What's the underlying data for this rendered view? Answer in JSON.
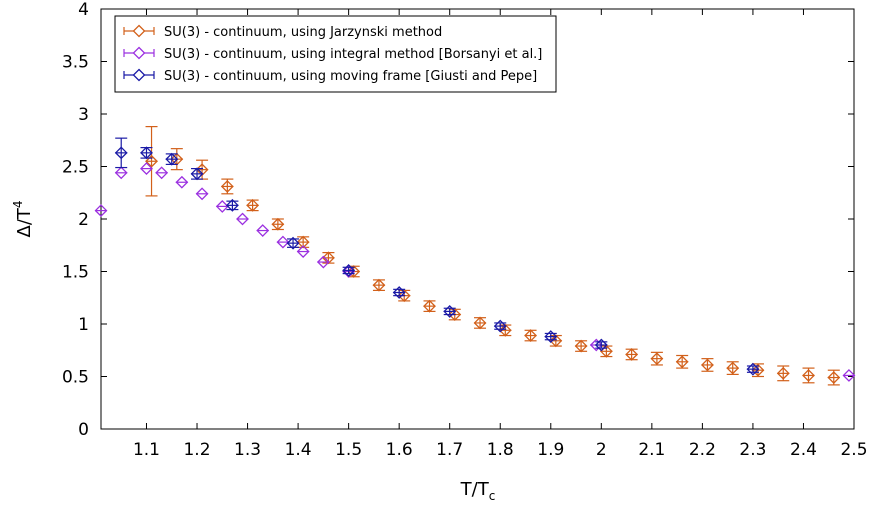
{
  "chart_data": {
    "type": "scatter",
    "xlabel": "T/T",
    "xlabel_sub": "c",
    "ylabel": "Δ/T",
    "ylabel_sup": "4",
    "xlim": [
      1.01,
      2.5
    ],
    "ylim": [
      0,
      4
    ],
    "xticks": [
      "1.1",
      "1.2",
      "1.3",
      "1.4",
      "1.5",
      "1.6",
      "1.7",
      "1.8",
      "1.9",
      "2",
      "2.1",
      "2.2",
      "2.3",
      "2.4",
      "2.5"
    ],
    "yticks": [
      "0",
      "0.5",
      "1",
      "1.5",
      "2",
      "2.5",
      "3",
      "3.5",
      "4"
    ],
    "grid": false,
    "legend_position": "top-left",
    "series": [
      {
        "name": "SU(3) - continuum, using Jarzynski method",
        "color": "#d2601a",
        "points": [
          {
            "x": 1.11,
            "y": 2.55,
            "err": 0.33
          },
          {
            "x": 1.16,
            "y": 2.57,
            "err": 0.1
          },
          {
            "x": 1.21,
            "y": 2.47,
            "err": 0.09
          },
          {
            "x": 1.26,
            "y": 2.31,
            "err": 0.07
          },
          {
            "x": 1.31,
            "y": 2.13,
            "err": 0.05
          },
          {
            "x": 1.36,
            "y": 1.95,
            "err": 0.05
          },
          {
            "x": 1.41,
            "y": 1.78,
            "err": 0.05
          },
          {
            "x": 1.46,
            "y": 1.63,
            "err": 0.05
          },
          {
            "x": 1.51,
            "y": 1.5,
            "err": 0.05
          },
          {
            "x": 1.56,
            "y": 1.37,
            "err": 0.05
          },
          {
            "x": 1.61,
            "y": 1.27,
            "err": 0.05
          },
          {
            "x": 1.66,
            "y": 1.17,
            "err": 0.05
          },
          {
            "x": 1.71,
            "y": 1.09,
            "err": 0.05
          },
          {
            "x": 1.76,
            "y": 1.01,
            "err": 0.05
          },
          {
            "x": 1.81,
            "y": 0.94,
            "err": 0.05
          },
          {
            "x": 1.86,
            "y": 0.89,
            "err": 0.05
          },
          {
            "x": 1.91,
            "y": 0.84,
            "err": 0.05
          },
          {
            "x": 1.96,
            "y": 0.79,
            "err": 0.05
          },
          {
            "x": 2.01,
            "y": 0.74,
            "err": 0.05
          },
          {
            "x": 2.06,
            "y": 0.71,
            "err": 0.05
          },
          {
            "x": 2.11,
            "y": 0.67,
            "err": 0.06
          },
          {
            "x": 2.16,
            "y": 0.64,
            "err": 0.06
          },
          {
            "x": 2.21,
            "y": 0.61,
            "err": 0.06
          },
          {
            "x": 2.26,
            "y": 0.58,
            "err": 0.06
          },
          {
            "x": 2.31,
            "y": 0.56,
            "err": 0.06
          },
          {
            "x": 2.36,
            "y": 0.53,
            "err": 0.07
          },
          {
            "x": 2.41,
            "y": 0.51,
            "err": 0.07
          },
          {
            "x": 2.46,
            "y": 0.49,
            "err": 0.07
          }
        ]
      },
      {
        "name": "SU(3) - continuum, using integral method [Borsanyi et al.]",
        "color": "#9b30e0",
        "points": [
          {
            "x": 1.01,
            "y": 2.08
          },
          {
            "x": 1.05,
            "y": 2.44
          },
          {
            "x": 1.1,
            "y": 2.48
          },
          {
            "x": 1.13,
            "y": 2.44
          },
          {
            "x": 1.17,
            "y": 2.35
          },
          {
            "x": 1.21,
            "y": 2.24
          },
          {
            "x": 1.25,
            "y": 2.12
          },
          {
            "x": 1.29,
            "y": 2.0
          },
          {
            "x": 1.33,
            "y": 1.89
          },
          {
            "x": 1.37,
            "y": 1.78
          },
          {
            "x": 1.41,
            "y": 1.69
          },
          {
            "x": 1.45,
            "y": 1.59
          },
          {
            "x": 1.5,
            "y": 1.5
          },
          {
            "x": 1.99,
            "y": 0.8
          },
          {
            "x": 2.49,
            "y": 0.51
          }
        ]
      },
      {
        "name": "SU(3) - continuum, using moving frame [Giusti and Pepe]",
        "color": "#1a1aa6",
        "points": [
          {
            "x": 1.05,
            "y": 2.63,
            "err": 0.14
          },
          {
            "x": 1.1,
            "y": 2.63,
            "err": 0.05
          },
          {
            "x": 1.15,
            "y": 2.57,
            "err": 0.05
          },
          {
            "x": 1.2,
            "y": 2.43,
            "err": 0.05
          },
          {
            "x": 1.27,
            "y": 2.13,
            "err": 0.04
          },
          {
            "x": 1.39,
            "y": 1.77,
            "err": 0.04
          },
          {
            "x": 1.5,
            "y": 1.51,
            "err": 0.03
          },
          {
            "x": 1.6,
            "y": 1.3,
            "err": 0.03
          },
          {
            "x": 1.7,
            "y": 1.12,
            "err": 0.03
          },
          {
            "x": 1.8,
            "y": 0.98,
            "err": 0.03
          },
          {
            "x": 1.9,
            "y": 0.88,
            "err": 0.03
          },
          {
            "x": 2.0,
            "y": 0.8,
            "err": 0.03
          },
          {
            "x": 2.3,
            "y": 0.57,
            "err": 0.03
          }
        ]
      }
    ]
  }
}
